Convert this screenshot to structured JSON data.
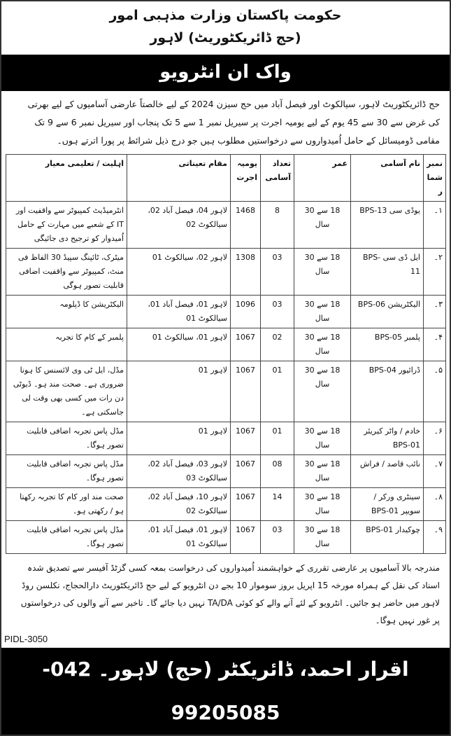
{
  "header": {
    "line1": "حکومت پاکستان وزارت مذہبی امور",
    "line2": "(حج ڈائریکٹوریٹ) لاہور",
    "banner": "واک ان انٹرویو"
  },
  "intro": "حج ڈائریکٹوریٹ لاہور، سیالکوٹ اور فیصل آباد میں حج سیزن 2024 کے لیے خالصتاً عارضی آسامیوں کے لیے بھرتی کی غرض سے 30 سے 45 یوم کے لیے یومیہ اجرت پر سیریل نمبر 1 سے 5 تک پنجاب اور سیریل نمبر 6 سے 9 تک مقامی ڈومیسائل کے حامل اُمیدواروں سے درخواستیں مطلوب ہیں جو درج ذیل شرائط پر پورا اترتے ہوں۔",
  "table": {
    "headers": [
      "نمبر شمار",
      "نام آسامی",
      "عمر",
      "تعداد آسامی",
      "یومیہ اجرت",
      "مقام تعیناتی",
      "اہلیت / تعلیمی معیار"
    ],
    "rows": [
      [
        "۱۔",
        "یوڈی سی BPS-13",
        "18 سے 30 سال",
        "8",
        "1468",
        "لاہور 04، فیصل آباد 02، سیالکوٹ 02",
        "انٹرمیڈیٹ کمپیوٹر سے واقفیت اور IT کے شعبے میں مہارت کے حامل اُمیدوار کو ترجیح دی جائیگی"
      ],
      [
        "۲۔",
        "ایل ڈی سی BPS-11",
        "18 سے 30 سال",
        "03",
        "1308",
        "لاہور 02، سیالکوٹ 01",
        "میٹرک، ٹائپنگ سپیڈ 30 الفاظ فی منٹ، کمپیوٹر سے واقفیت اضافی قابلیت تصور ہوگی"
      ],
      [
        "۳۔",
        "الیکٹریشن BPS-06",
        "18 سے 30 سال",
        "03",
        "1096",
        "لاہور 01، فیصل آباد 01، سیالکوٹ 01",
        "الیکٹریشن کا ڈپلومہ"
      ],
      [
        "۴۔",
        "پلمبر BPS-05",
        "18 سے 30 سال",
        "02",
        "1067",
        "لاہور 01، سیالکوٹ 01",
        "پلمبر کے کام کا تجربہ"
      ],
      [
        "۵۔",
        "ڈرائیور BPS-04",
        "18 سے 30 سال",
        "01",
        "1067",
        "لاہور 01",
        "مڈل، ایل ٹی وی لائسنس کا ہونا ضروری ہے۔ صحت مند ہو۔ ڈیوٹی دن رات میں کسی بھی وقت لی جاسکتی ہے۔"
      ],
      [
        "۶۔",
        "خادم / واٹر کیریئر BPS-01",
        "18 سے 30 سال",
        "01",
        "1067",
        "لاہور 01",
        "مڈل پاس تجربہ اضافی قابلیت تصور ہوگا۔"
      ],
      [
        "۷۔",
        "نائب قاصد / فراش",
        "18 سے 30 سال",
        "08",
        "1067",
        "لاہور 03، فیصل آباد 02، سیالکوٹ 03",
        "مڈل پاس تجربہ اضافی قابلیت تصور ہوگا۔"
      ],
      [
        "۸۔",
        "سینٹری ورکر / سویپر BPS-01",
        "18 سے 30 سال",
        "14",
        "1067",
        "لاہور 10، فیصل آباد 02، سیالکوٹ 02",
        "صحت مند اور کام کا تجربہ رکھتا ہو / رکھتی ہو۔"
      ],
      [
        "۹۔",
        "چوکیدار BPS-01",
        "18 سے 30 سال",
        "03",
        "1067",
        "لاہور 01، فیصل آباد 01، سیالکوٹ 01",
        "مڈل پاس تجربہ اضافی قابلیت تصور ہوگا۔"
      ]
    ]
  },
  "outro": "مندرجہ بالا آسامیوں پر عارضی تقرری کے خواہشمند اُمیدواروں کی درخواست بمعہ کسی گزٹڈ آفیسر سے تصدیق شدہ اسناد کی نقل کے ہمراہ مورخہ 15 اپریل بروز سوموار 10 بجے دن انٹرویو کے لیے حج ڈائریکٹوریٹ دارالحجاج، نکلسن روڈ لاہور میں حاضر ہو جائیں۔ انٹرویو کے لئے آنے والے کو کوئی TA/DA نہیں دیا جائے گا۔ تاخیر سے آنے والوں کی درخواستوں پر غور نہیں ہوگا۔",
  "pidl": "PIDL-3050",
  "footer": "اقرار احمد، ڈائریکٹر (حج) لاہور۔ 042-99205085"
}
